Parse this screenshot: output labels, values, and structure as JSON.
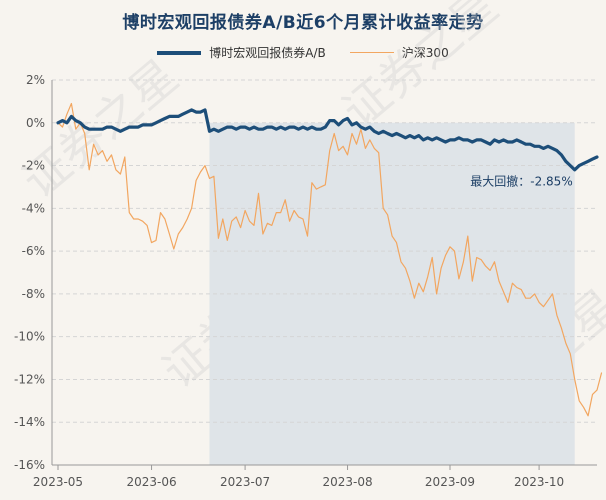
{
  "title": "博时宏观回报债券A/B近6个月累计收益率走势",
  "legend": {
    "fund_label": "博时宏观回报债券A/B",
    "index_label": "沪深300"
  },
  "watermark": "证券之星",
  "annotation": "最大回撤：-2.85%",
  "colors": {
    "fund": "#1d4e79",
    "index": "#f2a660",
    "drawdown_shade": "#dfe4e8",
    "grid": "#d5d5d5",
    "background": "#f7f4ef"
  },
  "chart_data": {
    "type": "line",
    "title": "博时宏观回报债券A/B近6个月累计收益率走势",
    "xlabel": "",
    "ylabel": "",
    "ylim": [
      -16,
      2
    ],
    "y_ticks": [
      "2%",
      "0%",
      "-2%",
      "-4%",
      "-6%",
      "-8%",
      "-10%",
      "-12%",
      "-14%",
      "-16%"
    ],
    "y_tick_values": [
      2,
      0,
      -2,
      -4,
      -6,
      -8,
      -10,
      -12,
      -14,
      -16
    ],
    "x_ticks": [
      "2023-05",
      "2023-06",
      "2023-07",
      "2023-08",
      "2023-09",
      "2023-10"
    ],
    "x_tick_index": [
      0,
      21,
      42,
      65,
      88,
      108
    ],
    "max_drawdown_span": [
      34,
      116
    ],
    "grid": "horizontal",
    "legend_position": "top",
    "series": [
      {
        "name": "博时宏观回报债券A/B",
        "values": [
          0,
          0.1,
          0,
          0.3,
          0.1,
          0,
          -0.2,
          -0.3,
          -0.3,
          -0.3,
          -0.3,
          -0.2,
          -0.2,
          -0.3,
          -0.4,
          -0.3,
          -0.2,
          -0.2,
          -0.2,
          -0.1,
          -0.1,
          -0.1,
          0,
          0.1,
          0.2,
          0.3,
          0.3,
          0.3,
          0.4,
          0.5,
          0.6,
          0.5,
          0.5,
          0.6,
          -0.4,
          -0.3,
          -0.4,
          -0.3,
          -0.2,
          -0.2,
          -0.3,
          -0.2,
          -0.2,
          -0.3,
          -0.2,
          -0.3,
          -0.3,
          -0.2,
          -0.2,
          -0.3,
          -0.2,
          -0.3,
          -0.2,
          -0.2,
          -0.3,
          -0.2,
          -0.3,
          -0.2,
          -0.3,
          -0.3,
          -0.2,
          0.1,
          0.1,
          -0.1,
          0.1,
          0.2,
          -0.1,
          0,
          -0.2,
          -0.3,
          -0.2,
          -0.4,
          -0.5,
          -0.4,
          -0.5,
          -0.6,
          -0.5,
          -0.6,
          -0.7,
          -0.6,
          -0.7,
          -0.6,
          -0.8,
          -0.7,
          -0.8,
          -0.7,
          -0.8,
          -0.9,
          -0.8,
          -0.8,
          -0.7,
          -0.8,
          -0.8,
          -0.9,
          -0.8,
          -0.8,
          -0.9,
          -1.0,
          -0.8,
          -0.9,
          -0.8,
          -0.9,
          -0.9,
          -0.8,
          -0.9,
          -1.0,
          -1.0,
          -1.1,
          -1.1,
          -1.2,
          -1.1,
          -1.2,
          -1.3,
          -1.5,
          -1.8,
          -2.0,
          -2.2,
          -2.0,
          -1.9,
          -1.8,
          -1.7,
          -1.6
        ]
      },
      {
        "name": "沪深300",
        "values": [
          0,
          -0.2,
          0.4,
          0.9,
          -0.3,
          0,
          -0.5,
          -2.2,
          -1.0,
          -1.5,
          -1.3,
          -1.8,
          -1.5,
          -2.2,
          -2.4,
          -1.6,
          -4.2,
          -4.5,
          -4.5,
          -4.6,
          -4.8,
          -5.6,
          -5.5,
          -4.2,
          -4.5,
          -5.2,
          -5.9,
          -5.2,
          -4.9,
          -4.5,
          -4.0,
          -2.7,
          -2.3,
          -2.0,
          -2.6,
          -2.5,
          -5.4,
          -4.5,
          -5.5,
          -4.6,
          -4.4,
          -4.9,
          -4.1,
          -4.6,
          -4.8,
          -3.3,
          -5.2,
          -4.7,
          -4.8,
          -4.2,
          -4.2,
          -3.6,
          -4.6,
          -4.1,
          -4.4,
          -4.5,
          -5.3,
          -2.8,
          -3.1,
          -3.0,
          -2.9,
          -1.3,
          -0.5,
          -1.3,
          -1.1,
          -1.5,
          -0.5,
          -1.0,
          -0.3,
          -1.2,
          -0.8,
          -1.2,
          -1.4,
          -4.0,
          -4.3,
          -5.3,
          -5.6,
          -6.5,
          -6.8,
          -7.4,
          -8.2,
          -7.5,
          -7.9,
          -7.2,
          -6.3,
          -8.0,
          -6.8,
          -6.2,
          -5.8,
          -6.0,
          -7.3,
          -6.5,
          -5.3,
          -7.4,
          -6.3,
          -6.4,
          -6.7,
          -6.9,
          -6.5,
          -7.4,
          -7.9,
          -8.4,
          -7.5,
          -7.7,
          -7.8,
          -8.2,
          -8.2,
          -8.0,
          -8.4,
          -8.6,
          -8.3,
          -8.0,
          -9.0,
          -9.6,
          -10.3,
          -10.8,
          -12.0,
          -13.0,
          -13.3,
          -13.7,
          -12.7,
          -12.5,
          -11.7
        ]
      }
    ]
  }
}
